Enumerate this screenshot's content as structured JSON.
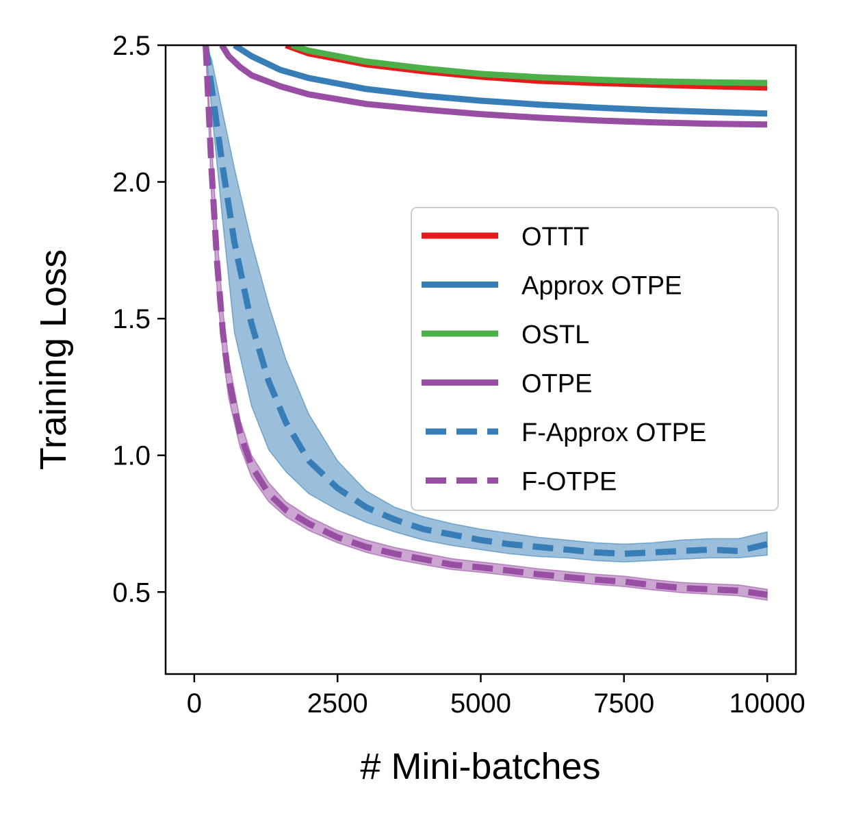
{
  "chart_data": {
    "type": "line",
    "title": "",
    "xlabel": "# Mini-batches",
    "ylabel": "Training Loss",
    "xlim": [
      -500,
      10500
    ],
    "ylim": [
      0.2,
      2.5
    ],
    "xticks": [
      0,
      2500,
      5000,
      7500,
      10000
    ],
    "xtick_labels": [
      "0",
      "2500",
      "5000",
      "7500",
      "10000"
    ],
    "yticks": [
      0.5,
      1.0,
      1.5,
      2.0,
      2.5
    ],
    "ytick_labels": [
      "0.5",
      "1.0",
      "1.5",
      "2.0",
      "2.5"
    ],
    "grid": false,
    "legend_position": "center-right",
    "series": [
      {
        "name": "OTTT",
        "color": "#e41a1c",
        "style": "solid",
        "x": [
          1600,
          2000,
          3000,
          4000,
          5000,
          6000,
          7000,
          8000,
          9000,
          10000
        ],
        "y": [
          2.5,
          2.47,
          2.43,
          2.405,
          2.385,
          2.37,
          2.362,
          2.356,
          2.35,
          2.345
        ]
      },
      {
        "name": "Approx OTPE",
        "color": "#377eb8",
        "style": "solid",
        "x": [
          700,
          1000,
          1500,
          2000,
          3000,
          4000,
          5000,
          6000,
          7000,
          8000,
          9000,
          10000
        ],
        "y": [
          2.5,
          2.46,
          2.41,
          2.38,
          2.34,
          2.315,
          2.297,
          2.283,
          2.272,
          2.263,
          2.256,
          2.25
        ]
      },
      {
        "name": "OSTL",
        "color": "#4daf4a",
        "style": "solid",
        "x": [
          1700,
          2000,
          3000,
          4000,
          5000,
          6000,
          7000,
          8000,
          9000,
          10000
        ],
        "y": [
          2.5,
          2.48,
          2.44,
          2.415,
          2.395,
          2.383,
          2.374,
          2.368,
          2.364,
          2.362
        ]
      },
      {
        "name": "OTPE",
        "color": "#984ea3",
        "style": "solid",
        "x": [
          480,
          600,
          800,
          1000,
          1500,
          2000,
          3000,
          4000,
          5000,
          6000,
          7000,
          8000,
          9000,
          10000
        ],
        "y": [
          2.5,
          2.46,
          2.42,
          2.39,
          2.35,
          2.32,
          2.285,
          2.265,
          2.248,
          2.235,
          2.225,
          2.218,
          2.213,
          2.21
        ]
      },
      {
        "name": "F-Approx OTPE",
        "color": "#377eb8",
        "style": "dashed",
        "band_color": "#377eb8",
        "x": [
          200,
          300,
          500,
          700,
          1000,
          1300,
          1600,
          2000,
          2500,
          3000,
          3500,
          4000,
          4500,
          5000,
          5500,
          6000,
          6500,
          7000,
          7500,
          8000,
          8500,
          9000,
          9500,
          10000
        ],
        "y": [
          2.5,
          2.35,
          2.05,
          1.78,
          1.48,
          1.27,
          1.12,
          0.98,
          0.88,
          0.81,
          0.765,
          0.73,
          0.71,
          0.69,
          0.675,
          0.665,
          0.655,
          0.645,
          0.64,
          0.645,
          0.65,
          0.655,
          0.65,
          0.675
        ],
        "lower": [
          2.5,
          2.27,
          1.85,
          1.45,
          1.18,
          1.02,
          0.94,
          0.86,
          0.8,
          0.755,
          0.72,
          0.69,
          0.67,
          0.655,
          0.64,
          0.63,
          0.625,
          0.615,
          0.61,
          0.615,
          0.62,
          0.625,
          0.625,
          0.635
        ],
        "upper": [
          2.5,
          2.45,
          2.25,
          2.05,
          1.78,
          1.55,
          1.35,
          1.15,
          0.98,
          0.87,
          0.81,
          0.775,
          0.75,
          0.73,
          0.715,
          0.7,
          0.69,
          0.68,
          0.675,
          0.68,
          0.69,
          0.695,
          0.695,
          0.72
        ]
      },
      {
        "name": "F-OTPE",
        "color": "#984ea3",
        "style": "dashed",
        "band_color": "#984ea3",
        "x": [
          200,
          300,
          400,
          500,
          600,
          800,
          1000,
          1300,
          1600,
          2000,
          2500,
          3000,
          3500,
          4000,
          4500,
          5000,
          5500,
          6000,
          6500,
          7000,
          7500,
          8000,
          8500,
          9000,
          9500,
          10000
        ],
        "y": [
          2.5,
          2.05,
          1.7,
          1.45,
          1.28,
          1.08,
          0.96,
          0.86,
          0.8,
          0.75,
          0.7,
          0.665,
          0.64,
          0.62,
          0.6,
          0.59,
          0.578,
          0.565,
          0.555,
          0.545,
          0.538,
          0.525,
          0.515,
          0.51,
          0.505,
          0.49
        ],
        "lower": [
          2.5,
          1.95,
          1.6,
          1.37,
          1.21,
          1.03,
          0.92,
          0.83,
          0.775,
          0.725,
          0.68,
          0.645,
          0.62,
          0.6,
          0.582,
          0.572,
          0.56,
          0.548,
          0.538,
          0.528,
          0.52,
          0.508,
          0.498,
          0.492,
          0.486,
          0.47
        ],
        "upper": [
          2.5,
          2.15,
          1.8,
          1.53,
          1.35,
          1.13,
          1.0,
          0.9,
          0.83,
          0.775,
          0.725,
          0.69,
          0.663,
          0.642,
          0.622,
          0.61,
          0.598,
          0.585,
          0.575,
          0.565,
          0.558,
          0.545,
          0.535,
          0.53,
          0.526,
          0.51
        ]
      }
    ]
  }
}
